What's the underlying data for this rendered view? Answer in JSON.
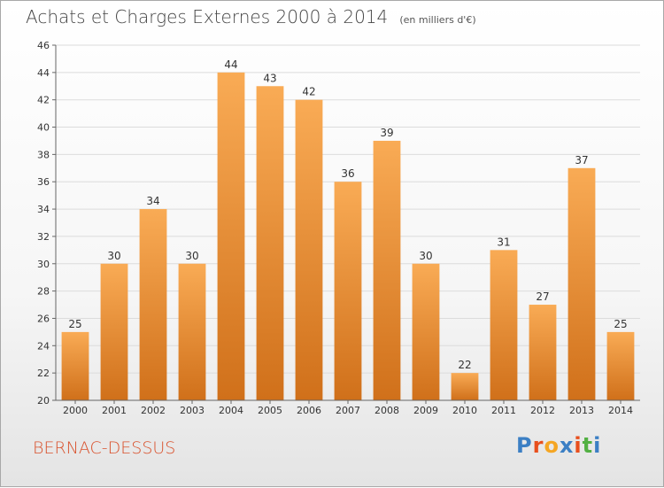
{
  "title": "Achats et Charges Externes 2000 à 2014",
  "subtitle": "(en milliers d'€)",
  "place_name": "BERNAC-DESSUS",
  "brand": {
    "letters": [
      "P",
      "r",
      "o",
      "x",
      "i",
      "t",
      "i"
    ],
    "colors": [
      "#3b7fc4",
      "#e8501e",
      "#f5a623",
      "#3b7fc4",
      "#e8501e",
      "#52b043",
      "#3b7fc4"
    ]
  },
  "colors": {
    "bar_light": "#f9ab55",
    "bar_dark": "#d0701a",
    "grid": "#dcdcdc",
    "axis": "#666666",
    "text": "#333333"
  },
  "chart_data": {
    "type": "bar",
    "categories": [
      "2000",
      "2001",
      "2002",
      "2003",
      "2004",
      "2005",
      "2006",
      "2007",
      "2008",
      "2009",
      "2010",
      "2011",
      "2012",
      "2013",
      "2014"
    ],
    "values": [
      25,
      30,
      34,
      30,
      44,
      43,
      42,
      36,
      39,
      30,
      22,
      31,
      27,
      37,
      25
    ],
    "data_labels": [
      "25",
      "30",
      "34",
      "30",
      "44",
      "43",
      "42",
      "36",
      "39",
      "30",
      "22",
      "31",
      "27",
      "37",
      "25"
    ],
    "ylim": [
      20,
      46
    ],
    "yticks": [
      20,
      22,
      24,
      26,
      28,
      30,
      32,
      34,
      36,
      38,
      40,
      42,
      44,
      46
    ],
    "xlabel": "",
    "ylabel": "",
    "grid": true,
    "legend": "none"
  }
}
